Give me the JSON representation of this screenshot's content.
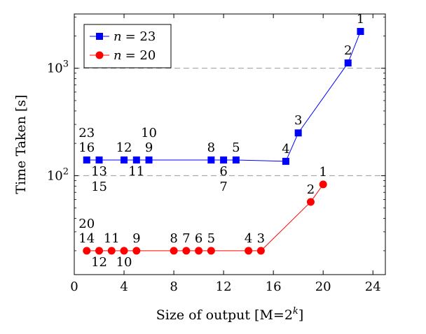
{
  "chart_data": {
    "type": "line",
    "xlabel": "Size of output [M=2^k]",
    "xlabel_parts": {
      "main": "Size of output [M=2",
      "sup": "k",
      "end": "]"
    },
    "ylabel": "Time Taken [s]",
    "xlim": [
      0,
      25
    ],
    "ylim": [
      12,
      3200
    ],
    "yscale": "log",
    "xticks": [
      0,
      4,
      8,
      12,
      16,
      20,
      24
    ],
    "yticks": [
      {
        "value": 100,
        "base": "10",
        "exp": "2"
      },
      {
        "value": 1000,
        "base": "10",
        "exp": "3"
      }
    ],
    "grid": "horizontal-dashed-at-major-y",
    "legend_position": "top-left",
    "series": [
      {
        "name": "n = 23",
        "legend_var": "n",
        "legend_value": "= 23",
        "color": "#0000ff",
        "marker": "square",
        "points": [
          {
            "x": 1,
            "y": 140,
            "labels": [
              {
                "text": "23",
                "pos": "above2"
              },
              {
                "text": "16",
                "pos": "above"
              }
            ]
          },
          {
            "x": 2,
            "y": 140,
            "labels": [
              {
                "text": "13",
                "pos": "below"
              },
              {
                "text": "15",
                "pos": "below2"
              }
            ]
          },
          {
            "x": 4,
            "y": 140,
            "labels": [
              {
                "text": "12",
                "pos": "above"
              }
            ]
          },
          {
            "x": 5,
            "y": 140,
            "labels": [
              {
                "text": "11",
                "pos": "below"
              }
            ]
          },
          {
            "x": 6,
            "y": 140,
            "labels": [
              {
                "text": "10",
                "pos": "above2"
              },
              {
                "text": "9",
                "pos": "above"
              }
            ]
          },
          {
            "x": 11,
            "y": 140,
            "labels": [
              {
                "text": "8",
                "pos": "above"
              }
            ]
          },
          {
            "x": 12,
            "y": 140,
            "labels": [
              {
                "text": "6",
                "pos": "below"
              },
              {
                "text": "7",
                "pos": "below2"
              }
            ]
          },
          {
            "x": 13,
            "y": 140,
            "labels": [
              {
                "text": "5",
                "pos": "above"
              }
            ]
          },
          {
            "x": 17,
            "y": 136,
            "labels": [
              {
                "text": "4",
                "pos": "above"
              }
            ]
          },
          {
            "x": 18,
            "y": 250,
            "labels": [
              {
                "text": "3",
                "pos": "above"
              }
            ]
          },
          {
            "x": 22,
            "y": 1120,
            "labels": [
              {
                "text": "2",
                "pos": "above"
              }
            ]
          },
          {
            "x": 23,
            "y": 2200,
            "labels": [
              {
                "text": "1",
                "pos": "above"
              }
            ]
          }
        ]
      },
      {
        "name": "n = 20",
        "legend_var": "n",
        "legend_value": "= 20",
        "color": "#ff0000",
        "marker": "circle",
        "points": [
          {
            "x": 1,
            "y": 20,
            "labels": [
              {
                "text": "20",
                "pos": "above2"
              },
              {
                "text": "14",
                "pos": "above"
              }
            ]
          },
          {
            "x": 2,
            "y": 20,
            "labels": [
              {
                "text": "12",
                "pos": "below"
              }
            ]
          },
          {
            "x": 3,
            "y": 20,
            "labels": [
              {
                "text": "11",
                "pos": "above"
              }
            ]
          },
          {
            "x": 4,
            "y": 20,
            "labels": [
              {
                "text": "10",
                "pos": "below"
              }
            ]
          },
          {
            "x": 5,
            "y": 20,
            "labels": [
              {
                "text": "9",
                "pos": "above"
              }
            ]
          },
          {
            "x": 8,
            "y": 20,
            "labels": [
              {
                "text": "8",
                "pos": "above"
              }
            ]
          },
          {
            "x": 9,
            "y": 20,
            "labels": [
              {
                "text": "7",
                "pos": "above"
              }
            ]
          },
          {
            "x": 10,
            "y": 20,
            "labels": [
              {
                "text": "6",
                "pos": "above"
              }
            ]
          },
          {
            "x": 11,
            "y": 20,
            "labels": [
              {
                "text": "5",
                "pos": "above"
              }
            ]
          },
          {
            "x": 14,
            "y": 20,
            "labels": [
              {
                "text": "4",
                "pos": "above"
              }
            ]
          },
          {
            "x": 15,
            "y": 20,
            "labels": [
              {
                "text": "3",
                "pos": "above"
              }
            ]
          },
          {
            "x": 19,
            "y": 57,
            "labels": [
              {
                "text": "2",
                "pos": "above"
              }
            ]
          },
          {
            "x": 20,
            "y": 83,
            "labels": [
              {
                "text": "1",
                "pos": "above"
              }
            ]
          }
        ]
      }
    ]
  }
}
